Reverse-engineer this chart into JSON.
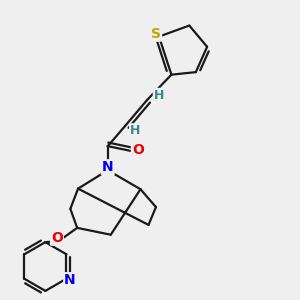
{
  "background_color": "#efefef",
  "atom_colors": {
    "S": "#b8a800",
    "N": "#0000ee",
    "O": "#ee0000",
    "C": "#1a1a1a",
    "H": "#3a8888"
  },
  "bond_color": "#1a1a1a",
  "bond_width": 1.6,
  "dbo": 0.012,
  "fig_width": 3.0,
  "fig_height": 3.0,
  "dpi": 100,
  "xlim": [
    0.0,
    1.0
  ],
  "ylim": [
    0.0,
    1.0
  ]
}
